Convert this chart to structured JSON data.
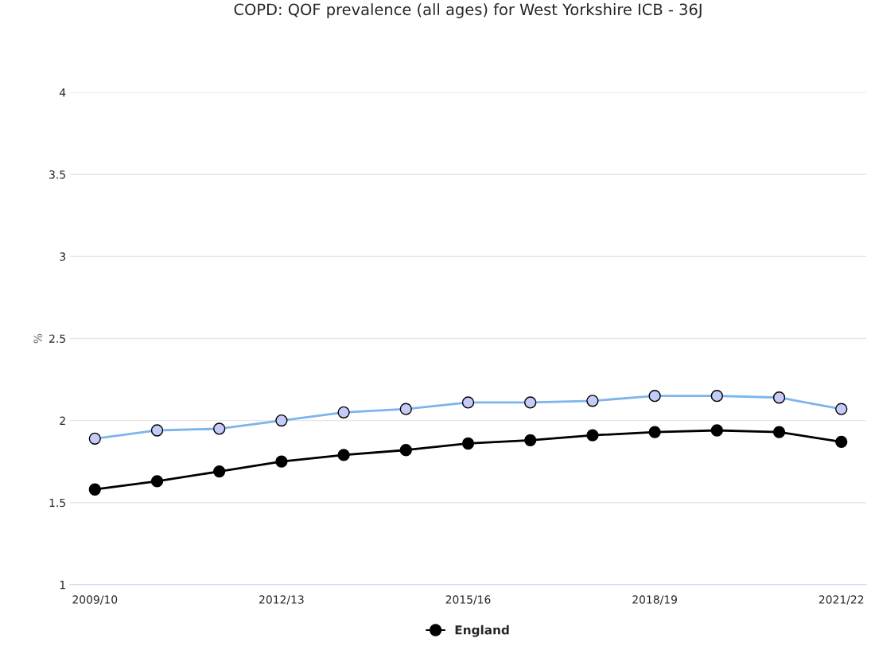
{
  "chart_data": {
    "type": "line",
    "title": "COPD: QOF prevalence (all ages) for West Yorkshire ICB - 36J",
    "ylabel": "%",
    "categories": [
      "2009/10",
      null,
      null,
      "2012/13",
      null,
      null,
      "2015/16",
      null,
      null,
      "2018/19",
      null,
      null,
      "2021/22"
    ],
    "series": [
      {
        "color": "#7cb5ec",
        "values": [
          1.89,
          1.94,
          1.95,
          2.0,
          2.05,
          2.07,
          2.11,
          2.11,
          2.12,
          2.15,
          2.15,
          2.14,
          2.07
        ]
      },
      {
        "name": "England",
        "color": "#000000",
        "values": [
          1.58,
          1.63,
          1.69,
          1.75,
          1.79,
          1.82,
          1.86,
          1.88,
          1.91,
          1.93,
          1.94,
          1.93,
          1.87
        ]
      }
    ],
    "ylim": [
      1,
      4
    ],
    "yticks": [
      1,
      1.5,
      2,
      2.5,
      3,
      3.5,
      4
    ],
    "grid": "y",
    "legend": "bottom",
    "marker": "circle",
    "line_style": "solid"
  }
}
